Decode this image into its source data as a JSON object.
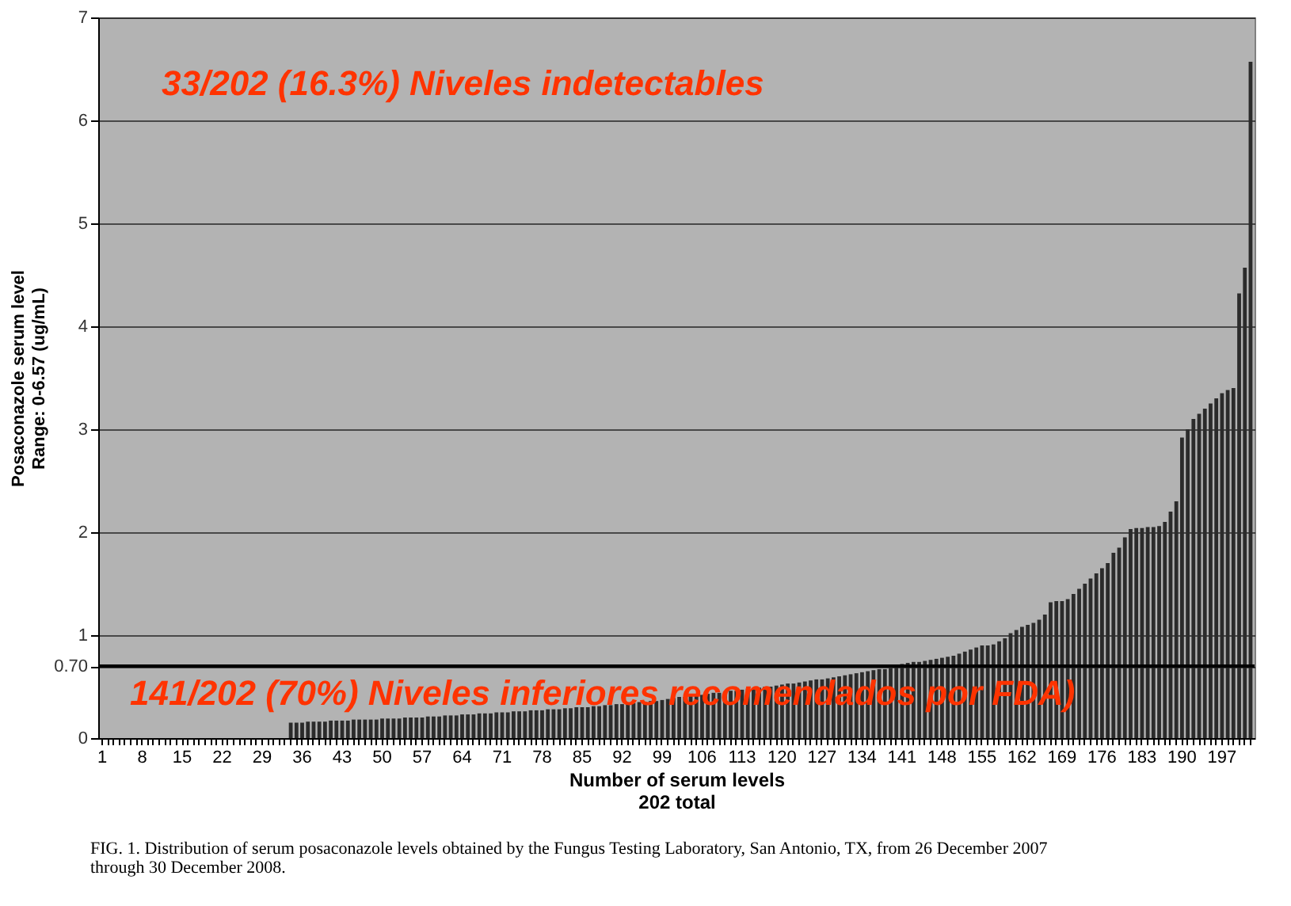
{
  "chart_data": {
    "type": "bar",
    "xlabel": "Number of serum levels\n202 total",
    "ylabel": "Posaconazole serum level\nRange: 0-6.57 (ug/mL)",
    "categories": [
      "1",
      null,
      null,
      null,
      null,
      null,
      null,
      "8",
      null,
      null,
      null,
      null,
      null,
      null,
      "15",
      null,
      null,
      null,
      null,
      null,
      null,
      "22",
      null,
      null,
      null,
      null,
      null,
      null,
      "29",
      null,
      null,
      null,
      null,
      null,
      null,
      "36",
      null,
      null,
      null,
      null,
      null,
      null,
      "43",
      null,
      null,
      null,
      null,
      null,
      null,
      "50",
      null,
      null,
      null,
      null,
      null,
      null,
      "57",
      null,
      null,
      null,
      null,
      null,
      null,
      "64",
      null,
      null,
      null,
      null,
      null,
      null,
      "71",
      null,
      null,
      null,
      null,
      null,
      null,
      "78",
      null,
      null,
      null,
      null,
      null,
      null,
      "85",
      null,
      null,
      null,
      null,
      null,
      null,
      "92",
      null,
      null,
      null,
      null,
      null,
      null,
      "99",
      null,
      null,
      null,
      null,
      null,
      null,
      "106",
      null,
      null,
      null,
      null,
      null,
      null,
      "113",
      null,
      null,
      null,
      null,
      null,
      null,
      "120",
      null,
      null,
      null,
      null,
      null,
      null,
      "127",
      null,
      null,
      null,
      null,
      null,
      null,
      "134",
      null,
      null,
      null,
      null,
      null,
      null,
      "141",
      null,
      null,
      null,
      null,
      null,
      null,
      "148",
      null,
      null,
      null,
      null,
      null,
      null,
      "155",
      null,
      null,
      null,
      null,
      null,
      null,
      "162",
      null,
      null,
      null,
      null,
      null,
      null,
      "169",
      null,
      null,
      null,
      null,
      null,
      null,
      "176",
      null,
      null,
      null,
      null,
      null,
      null,
      "183",
      null,
      null,
      null,
      null,
      null,
      null,
      "190",
      null,
      null,
      null,
      null,
      null,
      null,
      "197",
      null,
      null,
      null,
      null,
      null
    ],
    "values": [
      0,
      0,
      0,
      0,
      0,
      0,
      0,
      0,
      0,
      0,
      0,
      0,
      0,
      0,
      0,
      0,
      0,
      0,
      0,
      0,
      0,
      0,
      0,
      0,
      0,
      0,
      0,
      0,
      0,
      0,
      0,
      0,
      0,
      0.15,
      0.15,
      0.15,
      0.16,
      0.16,
      0.16,
      0.16,
      0.17,
      0.17,
      0.17,
      0.17,
      0.18,
      0.18,
      0.18,
      0.18,
      0.18,
      0.19,
      0.19,
      0.19,
      0.19,
      0.2,
      0.2,
      0.2,
      0.2,
      0.21,
      0.21,
      0.21,
      0.22,
      0.22,
      0.22,
      0.23,
      0.23,
      0.23,
      0.24,
      0.24,
      0.24,
      0.25,
      0.25,
      0.25,
      0.26,
      0.26,
      0.26,
      0.27,
      0.27,
      0.27,
      0.28,
      0.28,
      0.28,
      0.29,
      0.29,
      0.3,
      0.3,
      0.3,
      0.31,
      0.31,
      0.32,
      0.32,
      0.33,
      0.33,
      0.34,
      0.34,
      0.35,
      0.35,
      0.36,
      0.36,
      0.37,
      0.38,
      0.39,
      0.4,
      0.4,
      0.41,
      0.42,
      0.42,
      0.43,
      0.44,
      0.44,
      0.45,
      0.46,
      0.46,
      0.47,
      0.48,
      0.48,
      0.49,
      0.5,
      0.5,
      0.51,
      0.52,
      0.53,
      0.53,
      0.54,
      0.55,
      0.56,
      0.57,
      0.57,
      0.58,
      0.59,
      0.6,
      0.61,
      0.62,
      0.63,
      0.64,
      0.65,
      0.66,
      0.67,
      0.67,
      0.68,
      0.69,
      0.72,
      0.73,
      0.74,
      0.74,
      0.75,
      0.76,
      0.77,
      0.78,
      0.79,
      0.8,
      0.82,
      0.84,
      0.86,
      0.88,
      0.9,
      0.9,
      0.91,
      0.94,
      0.97,
      1.02,
      1.05,
      1.08,
      1.1,
      1.12,
      1.15,
      1.2,
      1.32,
      1.33,
      1.33,
      1.35,
      1.4,
      1.45,
      1.5,
      1.55,
      1.6,
      1.65,
      1.7,
      1.8,
      1.85,
      1.95,
      2.03,
      2.04,
      2.04,
      2.05,
      2.05,
      2.06,
      2.1,
      2.2,
      2.3,
      2.92,
      3.0,
      3.1,
      3.15,
      3.2,
      3.25,
      3.3,
      3.35,
      3.38,
      3.4,
      4.32,
      4.57,
      6.57
    ],
    "color": "#2b2b2b",
    "ylim": [
      0,
      7
    ],
    "yticks": [
      0,
      {
        "value": 0.7,
        "label": "0.70"
      },
      1,
      2,
      3,
      4,
      5,
      6,
      7
    ],
    "grid": "y",
    "ref_lines": [
      {
        "axis": "y",
        "value": 0.7,
        "color": "#000000"
      }
    ],
    "annotations": [
      "33/202 (16.3%) Niveles indetectables",
      "141/202 (70%) Niveles inferiores recomendados por FDA)",
      "FIG. 1. Distribution of serum posaconazole levels obtained by the Fungus Testing Laboratory, San Antonio, TX, from 26 December 2007\nthrough 30 December 2008."
    ]
  }
}
